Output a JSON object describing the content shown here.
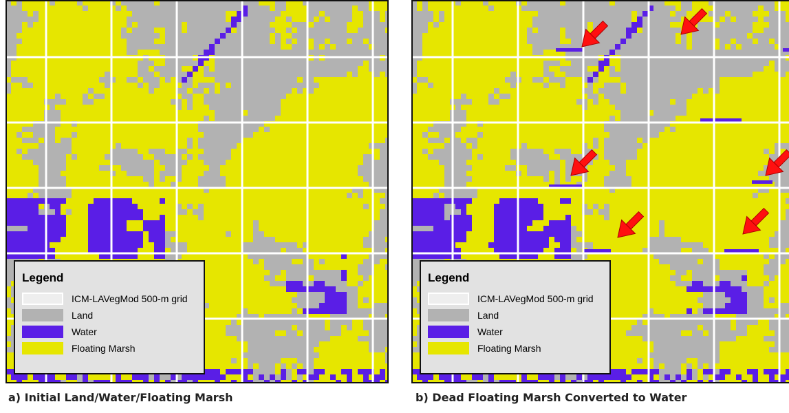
{
  "panels": [
    {
      "legend": {
        "title": "Legend",
        "items": [
          "ICM-LAVegMod 500-m grid",
          "Land",
          "Water",
          "Floating Marsh"
        ]
      },
      "caption": "a) Initial Land/Water/Floating Marsh"
    },
    {
      "legend": {
        "title": "Legend",
        "items": [
          "ICM-LAVegMod 500-m grid",
          "Land",
          "Water",
          "Floating Marsh"
        ]
      },
      "caption": "b) Dead Floating Marsh Converted to Water"
    }
  ]
}
